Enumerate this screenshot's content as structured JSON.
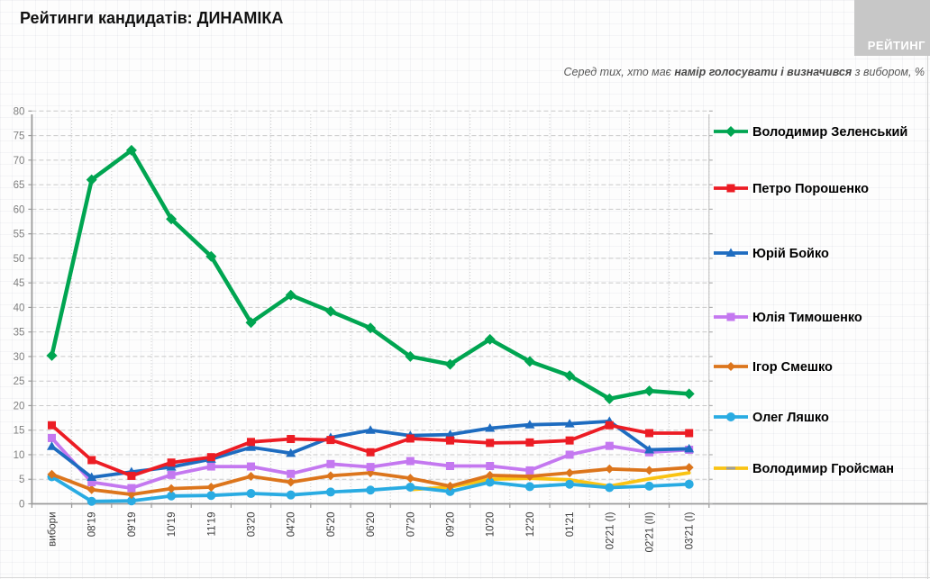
{
  "page": {
    "title": "Рейтинги кандидатів: ДИНАМІКА",
    "logo_label": "РЕЙТИНГ"
  },
  "subtitle": {
    "prefix": "Серед тих, хто має ",
    "bold": "намір голосувати і визначився",
    "suffix": " з вибором, %"
  },
  "chart_data": {
    "type": "line",
    "title": "Рейтинги кандидатів: ДИНАМІКА",
    "subtitle": "Серед тих, хто має намір голосувати і визначився з вибором, %",
    "xlabel": "",
    "ylabel": "",
    "ylim": [
      0,
      80
    ],
    "ytick_step": 5,
    "grid": true,
    "legend_position": "right",
    "categories": [
      "вибори",
      "08'19",
      "09'19",
      "10'19",
      "11'19",
      "03'20",
      "04'20",
      "05'20",
      "06'20",
      "07'20",
      "09'20",
      "10'20",
      "12'20",
      "01'21",
      "02'21 (I)",
      "02'21 (II)",
      "03'21 (I)"
    ],
    "series": [
      {
        "name": "Володимир Зеленський",
        "color": "#00a551",
        "marker": "diamond",
        "values": [
          30.2,
          66.0,
          72.0,
          58.0,
          50.4,
          36.9,
          42.5,
          39.2,
          35.8,
          30.0,
          28.4,
          33.5,
          29.0,
          26.1,
          21.4,
          23.0,
          22.4
        ]
      },
      {
        "name": "Петро Порошенко",
        "color": "#ec1c24",
        "marker": "square",
        "values": [
          16.0,
          8.9,
          5.7,
          8.4,
          9.5,
          12.6,
          13.2,
          13.0,
          10.5,
          13.3,
          12.9,
          12.4,
          12.5,
          12.9,
          16.0,
          14.4,
          14.4
        ]
      },
      {
        "name": "Юрій Бойко",
        "color": "#1e6cc0",
        "marker": "triangle",
        "values": [
          11.7,
          5.4,
          6.5,
          7.5,
          9.1,
          11.5,
          10.3,
          13.5,
          15.0,
          13.9,
          14.1,
          15.4,
          16.1,
          16.3,
          16.8,
          11.0,
          11.2
        ]
      },
      {
        "name": "Юлія Тимошенко",
        "color": "#c478f0",
        "marker": "square",
        "values": [
          13.4,
          4.4,
          3.2,
          5.9,
          7.6,
          7.6,
          6.1,
          8.1,
          7.5,
          8.7,
          7.7,
          7.7,
          6.8,
          10.0,
          11.8,
          10.5,
          11.0
        ]
      },
      {
        "name": "Ігор Смешко",
        "color": "#dc751c",
        "marker": "diamond",
        "values": [
          6.0,
          2.9,
          1.9,
          3.1,
          3.4,
          5.6,
          4.4,
          5.7,
          6.3,
          5.2,
          3.6,
          5.8,
          5.6,
          6.3,
          7.1,
          6.8,
          7.4
        ]
      },
      {
        "name": "Олег Ляшко",
        "color": "#29abe2",
        "marker": "circle",
        "values": [
          5.5,
          0.5,
          0.6,
          1.6,
          1.7,
          2.1,
          1.8,
          2.4,
          2.8,
          3.4,
          2.5,
          4.4,
          3.5,
          4.0,
          3.3,
          3.6,
          4.0
        ]
      },
      {
        "name": "Володимир Гройсман",
        "color": "#f9c313",
        "marker": "dash",
        "values": [
          null,
          null,
          null,
          null,
          null,
          null,
          null,
          null,
          null,
          2.9,
          3.4,
          5.0,
          5.2,
          4.9,
          3.6,
          5.1,
          6.3
        ]
      }
    ]
  }
}
